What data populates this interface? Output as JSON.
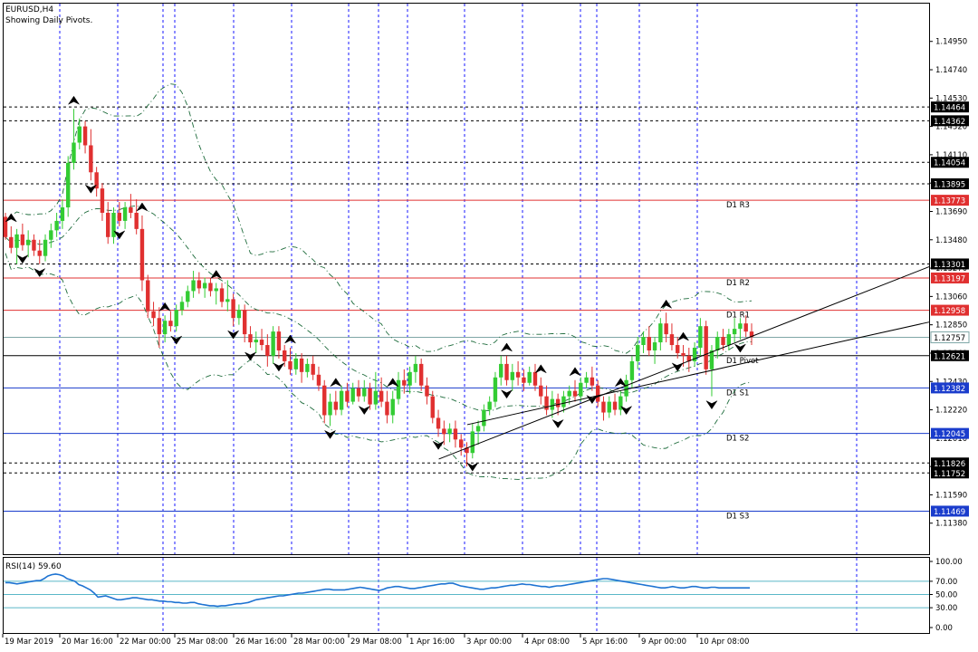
{
  "chart_data": {
    "type": "candlestick",
    "symbol_label": "EURUSD,H4",
    "subtitle": "Showing Daily Pivots.",
    "price_axis": {
      "ylim": [
        1.1115,
        1.1523
      ],
      "ticks": [
        "1.14950",
        "1.14740",
        "1.14530",
        "1.14320",
        "1.14110",
        "1.13900",
        "1.13690",
        "1.13480",
        "1.13270",
        "1.13060",
        "1.12850",
        "1.12640",
        "1.12430",
        "1.12220",
        "1.12010",
        "1.11800",
        "1.11590",
        "1.11380"
      ]
    },
    "time_axis": {
      "labels": [
        "19 Mar 2019",
        "20 Mar 16:00",
        "22 Mar 00:00",
        "25 Mar 08:00",
        "26 Mar 16:00",
        "28 Mar 00:00",
        "29 Mar 08:00",
        "1 Apr 16:00",
        "3 Apr 00:00",
        "4 Apr 08:00",
        "5 Apr 16:00",
        "9 Apr 00:00",
        "10 Apr 08:00"
      ],
      "vertical_grid_dashed": true
    },
    "pivot_levels": [
      {
        "name": "D1 R3",
        "value": 1.13773,
        "value_label": "1.13773",
        "color": "#e03030"
      },
      {
        "name": "D1 R2",
        "value": 1.13197,
        "value_label": "1.13197",
        "color": "#e03030"
      },
      {
        "name": "D1 R1",
        "value": 1.12958,
        "value_label": "1.12958",
        "color": "#e03030"
      },
      {
        "name": "D1 Pivot",
        "value": 1.12621,
        "value_label": "1.12621",
        "color": "#000000"
      },
      {
        "name": "D1 S1",
        "value": 1.12382,
        "value_label": "1.12382",
        "color": "#1a3ccc"
      },
      {
        "name": "D1 S2",
        "value": 1.12045,
        "value_label": "1.12045",
        "color": "#1a3ccc"
      },
      {
        "name": "D1 S3",
        "value": 1.11469,
        "value_label": "1.11469",
        "color": "#1a3ccc"
      }
    ],
    "horizontal_levels_dashed": [
      {
        "value": 1.14464,
        "label": "1.14464"
      },
      {
        "value": 1.14362,
        "label": "1.14362"
      },
      {
        "value": 1.14054,
        "label": "1.14054"
      },
      {
        "value": 1.13895,
        "label": "1.13895"
      },
      {
        "value": 1.13301,
        "label": "1.13301"
      },
      {
        "value": 1.11826,
        "label": "1.11826"
      },
      {
        "value": 1.11752,
        "label": "1.11752"
      }
    ],
    "current_price": {
      "value": 1.12757,
      "label": "1.12757",
      "color": "#7fa7a7"
    },
    "channel_lines": [
      {
        "from": {
          "index": 122,
          "price": 1.11855
        },
        "to": {
          "index": 260,
          "price": 1.1328
        }
      },
      {
        "from": {
          "index": 130,
          "price": 1.1211
        },
        "to": {
          "index": 260,
          "price": 1.1287
        }
      }
    ],
    "candle_colors": {
      "up": "#33cc33",
      "down": "#e03030"
    },
    "candles": [
      [
        1.1365,
        1.1368,
        1.1348,
        1.135
      ],
      [
        1.135,
        1.1358,
        1.1338,
        1.1342
      ],
      [
        1.1342,
        1.1356,
        1.133,
        1.1352
      ],
      [
        1.1352,
        1.136,
        1.134,
        1.1344
      ],
      [
        1.1344,
        1.1355,
        1.1335,
        1.1348
      ],
      [
        1.1348,
        1.1352,
        1.1336,
        1.134
      ],
      [
        1.134,
        1.1348,
        1.133,
        1.1336
      ],
      [
        1.1336,
        1.1352,
        1.1332,
        1.1348
      ],
      [
        1.1348,
        1.136,
        1.1342,
        1.1355
      ],
      [
        1.1355,
        1.1368,
        1.135,
        1.1362
      ],
      [
        1.1362,
        1.1378,
        1.1356,
        1.1372
      ],
      [
        1.1372,
        1.141,
        1.1365,
        1.1405
      ],
      [
        1.1405,
        1.1445,
        1.14,
        1.142
      ],
      [
        1.142,
        1.1438,
        1.1415,
        1.1432
      ],
      [
        1.1432,
        1.1436,
        1.1412,
        1.1418
      ],
      [
        1.1418,
        1.143,
        1.1392,
        1.1398
      ],
      [
        1.1398,
        1.1402,
        1.138,
        1.1386
      ],
      [
        1.1386,
        1.139,
        1.1362,
        1.1368
      ],
      [
        1.1368,
        1.1376,
        1.1345,
        1.135
      ],
      [
        1.135,
        1.1372,
        1.1345,
        1.1368
      ],
      [
        1.1368,
        1.1376,
        1.1358,
        1.1362
      ],
      [
        1.1362,
        1.1376,
        1.1356,
        1.1372
      ],
      [
        1.1372,
        1.1382,
        1.1364,
        1.1368
      ],
      [
        1.1368,
        1.1378,
        1.1352,
        1.1356
      ],
      [
        1.1356,
        1.1366,
        1.131,
        1.1318
      ],
      [
        1.1318,
        1.1322,
        1.129,
        1.1295
      ],
      [
        1.1295,
        1.1302,
        1.1284,
        1.129
      ],
      [
        1.129,
        1.1298,
        1.1268,
        1.1278
      ],
      [
        1.1278,
        1.1292,
        1.1272,
        1.1288
      ],
      [
        1.1288,
        1.1295,
        1.128,
        1.1284
      ],
      [
        1.1284,
        1.13,
        1.128,
        1.1296
      ],
      [
        1.1296,
        1.1306,
        1.1292,
        1.1302
      ],
      [
        1.1302,
        1.1314,
        1.1298,
        1.131
      ],
      [
        1.131,
        1.1325,
        1.1305,
        1.1318
      ],
      [
        1.1318,
        1.1324,
        1.1308,
        1.1312
      ],
      [
        1.1312,
        1.132,
        1.1305,
        1.1316
      ],
      [
        1.1316,
        1.132,
        1.1306,
        1.131
      ],
      [
        1.131,
        1.1316,
        1.13,
        1.1312
      ],
      [
        1.1312,
        1.1316,
        1.1298,
        1.1302
      ],
      [
        1.1302,
        1.1318,
        1.1295,
        1.1304
      ],
      [
        1.1304,
        1.1308,
        1.1284,
        1.129
      ],
      [
        1.129,
        1.13,
        1.1285,
        1.1296
      ],
      [
        1.1296,
        1.13,
        1.1272,
        1.1278
      ],
      [
        1.1278,
        1.1284,
        1.1268,
        1.1272
      ],
      [
        1.1272,
        1.128,
        1.1264,
        1.1274
      ],
      [
        1.1274,
        1.1282,
        1.1266,
        1.127
      ],
      [
        1.127,
        1.1278,
        1.1254,
        1.1262
      ],
      [
        1.1262,
        1.1284,
        1.1256,
        1.128
      ],
      [
        1.128,
        1.1284,
        1.126,
        1.1266
      ],
      [
        1.1266,
        1.127,
        1.1254,
        1.1258
      ],
      [
        1.1258,
        1.1268,
        1.1248,
        1.1252
      ],
      [
        1.1252,
        1.1264,
        1.1248,
        1.126
      ],
      [
        1.126,
        1.1264,
        1.1242,
        1.125
      ],
      [
        1.125,
        1.126,
        1.1246,
        1.1256
      ],
      [
        1.1256,
        1.1262,
        1.1244,
        1.1248
      ],
      [
        1.1248,
        1.1254,
        1.1236,
        1.124
      ],
      [
        1.124,
        1.1244,
        1.1212,
        1.1218
      ],
      [
        1.1218,
        1.1234,
        1.121,
        1.1228
      ],
      [
        1.1228,
        1.1236,
        1.1218,
        1.1222
      ],
      [
        1.1222,
        1.124,
        1.1218,
        1.1236
      ],
      [
        1.1236,
        1.1242,
        1.1224,
        1.1228
      ],
      [
        1.1228,
        1.1242,
        1.1226,
        1.1238
      ],
      [
        1.1238,
        1.1244,
        1.1228,
        1.1232
      ],
      [
        1.1232,
        1.1244,
        1.1228,
        1.1238
      ],
      [
        1.1238,
        1.1242,
        1.1222,
        1.1226
      ],
      [
        1.1226,
        1.125,
        1.1222,
        1.1236
      ],
      [
        1.1236,
        1.1246,
        1.1224,
        1.1228
      ],
      [
        1.1228,
        1.1236,
        1.1212,
        1.1218
      ],
      [
        1.1218,
        1.1236,
        1.1212,
        1.123
      ],
      [
        1.123,
        1.125,
        1.1226,
        1.1244
      ],
      [
        1.1244,
        1.1252,
        1.1234,
        1.124
      ],
      [
        1.124,
        1.1254,
        1.1234,
        1.125
      ],
      [
        1.125,
        1.1262,
        1.1242,
        1.1256
      ],
      [
        1.1256,
        1.126,
        1.1236,
        1.124
      ],
      [
        1.124,
        1.1246,
        1.1226,
        1.1232
      ],
      [
        1.1232,
        1.1236,
        1.1212,
        1.1216
      ],
      [
        1.1216,
        1.1222,
        1.1202,
        1.1208
      ],
      [
        1.1208,
        1.1214,
        1.1196,
        1.1204
      ],
      [
        1.1204,
        1.1212,
        1.1198,
        1.1208
      ],
      [
        1.1208,
        1.1214,
        1.1194,
        1.12
      ],
      [
        1.12,
        1.1204,
        1.1188,
        1.1194
      ],
      [
        1.1194,
        1.1198,
        1.118,
        1.119
      ],
      [
        1.119,
        1.1212,
        1.1186,
        1.1206
      ],
      [
        1.1206,
        1.1214,
        1.1196,
        1.121
      ],
      [
        1.121,
        1.1226,
        1.1206,
        1.1222
      ],
      [
        1.1222,
        1.1232,
        1.1218,
        1.1228
      ],
      [
        1.1228,
        1.125,
        1.1224,
        1.1246
      ],
      [
        1.1246,
        1.1262,
        1.124,
        1.1256
      ],
      [
        1.1256,
        1.1262,
        1.124,
        1.1244
      ],
      [
        1.1244,
        1.1256,
        1.1236,
        1.125
      ],
      [
        1.125,
        1.1258,
        1.124,
        1.1246
      ],
      [
        1.1246,
        1.1252,
        1.1236,
        1.1242
      ],
      [
        1.1242,
        1.1254,
        1.124,
        1.125
      ],
      [
        1.125,
        1.1256,
        1.1236,
        1.124
      ],
      [
        1.124,
        1.1246,
        1.1226,
        1.1232
      ],
      [
        1.1232,
        1.124,
        1.1218,
        1.1222
      ],
      [
        1.1222,
        1.1236,
        1.1216,
        1.123
      ],
      [
        1.123,
        1.1234,
        1.1218,
        1.1224
      ],
      [
        1.1224,
        1.1236,
        1.122,
        1.1232
      ],
      [
        1.1232,
        1.124,
        1.1226,
        1.1236
      ],
      [
        1.1236,
        1.1244,
        1.1228,
        1.1232
      ],
      [
        1.1232,
        1.1246,
        1.1228,
        1.1242
      ],
      [
        1.1242,
        1.125,
        1.1238,
        1.1246
      ],
      [
        1.1246,
        1.1254,
        1.1236,
        1.124
      ],
      [
        1.124,
        1.1244,
        1.1224,
        1.1228
      ],
      [
        1.1228,
        1.1232,
        1.1214,
        1.122
      ],
      [
        1.122,
        1.1232,
        1.1216,
        1.1228
      ],
      [
        1.1228,
        1.1234,
        1.1218,
        1.1222
      ],
      [
        1.1222,
        1.1236,
        1.1218,
        1.1232
      ],
      [
        1.1232,
        1.1248,
        1.1228,
        1.1244
      ],
      [
        1.1244,
        1.1262,
        1.1238,
        1.1258
      ],
      [
        1.1258,
        1.1276,
        1.1252,
        1.127
      ],
      [
        1.127,
        1.128,
        1.1264,
        1.1276
      ],
      [
        1.1276,
        1.1284,
        1.1262,
        1.1266
      ],
      [
        1.1266,
        1.1276,
        1.1256,
        1.1272
      ],
      [
        1.1272,
        1.129,
        1.1266,
        1.1286
      ],
      [
        1.1286,
        1.1294,
        1.1272,
        1.1278
      ],
      [
        1.1278,
        1.1286,
        1.1266,
        1.127
      ],
      [
        1.127,
        1.1276,
        1.126,
        1.1264
      ],
      [
        1.1264,
        1.127,
        1.1254,
        1.1262
      ],
      [
        1.1262,
        1.1268,
        1.125,
        1.1258
      ],
      [
        1.1258,
        1.1272,
        1.1254,
        1.1268
      ],
      [
        1.1268,
        1.129,
        1.1262,
        1.1284
      ],
      [
        1.1284,
        1.1288,
        1.1248,
        1.1252
      ],
      [
        1.1252,
        1.127,
        1.1232,
        1.1266
      ],
      [
        1.1266,
        1.128,
        1.126,
        1.1276
      ],
      [
        1.1276,
        1.1282,
        1.1266,
        1.127
      ],
      [
        1.127,
        1.1282,
        1.1266,
        1.1278
      ],
      [
        1.1278,
        1.129,
        1.1272,
        1.1282
      ],
      [
        1.1282,
        1.129,
        1.1274,
        1.1286
      ],
      [
        1.1286,
        1.1292,
        1.1276,
        1.128
      ],
      [
        1.128,
        1.1286,
        1.127,
        1.1276
      ]
    ],
    "bands": {
      "upper_start": [
        1.1367,
        1.137,
        1.1368,
        1.1366,
        1.1369,
        1.1372,
        1.1369,
        1.1367,
        1.1366,
        1.1372,
        1.1385,
        1.1405,
        1.143,
        1.1437,
        1.1435,
        1.1434,
        1.1438,
        1.1447,
        1.1448,
        1.1449,
        1.145,
        1.145,
        1.1449,
        1.1448,
        1.1448,
        1.144,
        1.143,
        1.141,
        1.139,
        1.137,
        1.135,
        1.133,
        1.1318,
        1.1312,
        1.131,
        1.1309,
        1.1308,
        1.1307,
        1.1306
      ],
      "note": "bands drawn from candle rolling statistics"
    },
    "highlight_arrows_up": [
      2,
      17,
      35,
      41,
      53,
      73,
      84,
      99,
      127,
      137,
      145,
      157,
      168,
      173
    ],
    "highlight_arrows_down": [
      4,
      9,
      22,
      29,
      43,
      58,
      62,
      70,
      83,
      91,
      110,
      119,
      128,
      141,
      149,
      158,
      171,
      180,
      187
    ],
    "rsi": {
      "label": "RSI(14) 59.60",
      "ticks": [
        "100.00",
        "70.00",
        "50.00",
        "30.00",
        "0.00"
      ],
      "levels": [
        70,
        50,
        30
      ],
      "values": [
        68,
        68,
        67,
        66,
        67,
        68,
        69,
        70,
        71,
        71,
        74,
        78,
        80,
        81,
        80,
        78,
        74,
        72,
        70,
        65,
        63,
        60,
        57,
        52,
        46,
        47,
        48,
        46,
        44,
        42,
        42,
        43,
        44,
        45,
        45,
        44,
        43,
        42,
        42,
        41,
        40,
        40,
        39,
        39,
        38,
        38,
        37,
        37,
        38,
        38,
        36,
        35,
        34,
        33,
        33,
        32,
        33,
        33,
        34,
        35,
        36,
        36,
        37,
        38,
        40,
        42,
        43,
        44,
        45,
        46,
        47,
        48,
        48,
        49,
        50,
        51,
        52,
        52,
        53,
        54,
        55,
        56,
        57,
        58,
        58,
        57,
        57,
        57,
        57,
        58,
        59,
        60,
        61,
        60,
        59,
        58,
        57,
        56,
        58,
        60,
        61,
        62,
        62,
        61,
        60,
        59,
        59,
        60,
        61,
        62,
        63,
        64,
        65,
        66,
        66,
        67,
        67,
        65,
        63,
        62,
        61,
        60,
        59,
        58,
        58,
        59,
        60,
        60,
        61,
        62,
        63,
        64,
        64,
        65,
        66,
        65,
        65,
        64,
        63,
        62,
        62,
        61,
        62,
        63,
        63,
        64,
        65,
        66,
        67,
        68,
        69,
        70,
        71,
        72,
        73,
        74,
        74,
        73,
        72,
        71,
        70,
        69,
        68,
        67,
        66,
        65,
        64,
        63,
        62,
        61,
        60,
        60,
        61,
        62,
        61,
        60,
        60,
        61,
        62,
        62,
        61,
        60,
        60,
        61,
        61,
        60,
        60,
        60,
        60,
        60,
        60,
        60,
        60,
        60
      ]
    }
  }
}
